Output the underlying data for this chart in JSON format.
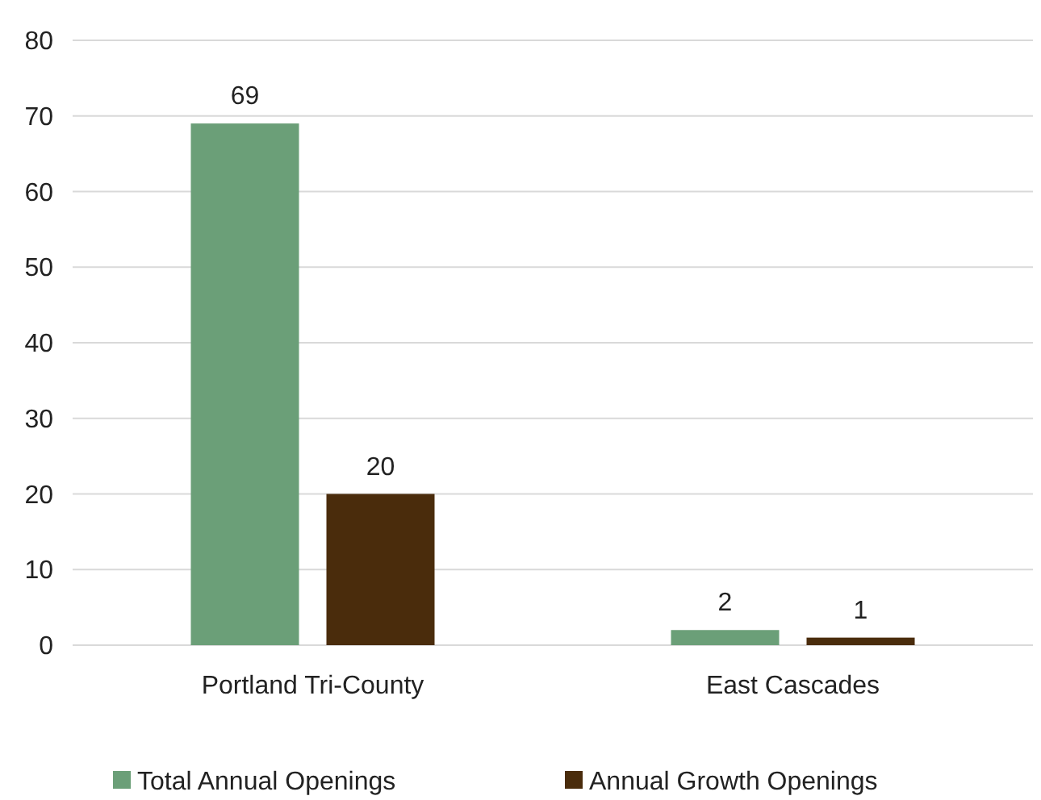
{
  "chart_data": {
    "type": "bar",
    "categories": [
      "Portland Tri-County",
      "East Cascades"
    ],
    "series": [
      {
        "name": "Total Annual Openings",
        "color": "#6b9f78",
        "values": [
          69,
          2
        ]
      },
      {
        "name": "Annual Growth Openings",
        "color": "#4a2c0c",
        "values": [
          20,
          1
        ]
      }
    ],
    "ylim": [
      0,
      80
    ],
    "yticks": [
      0,
      10,
      20,
      30,
      40,
      50,
      60,
      70,
      80
    ],
    "grid": "y",
    "legend": "bottom",
    "data_labels": true
  }
}
